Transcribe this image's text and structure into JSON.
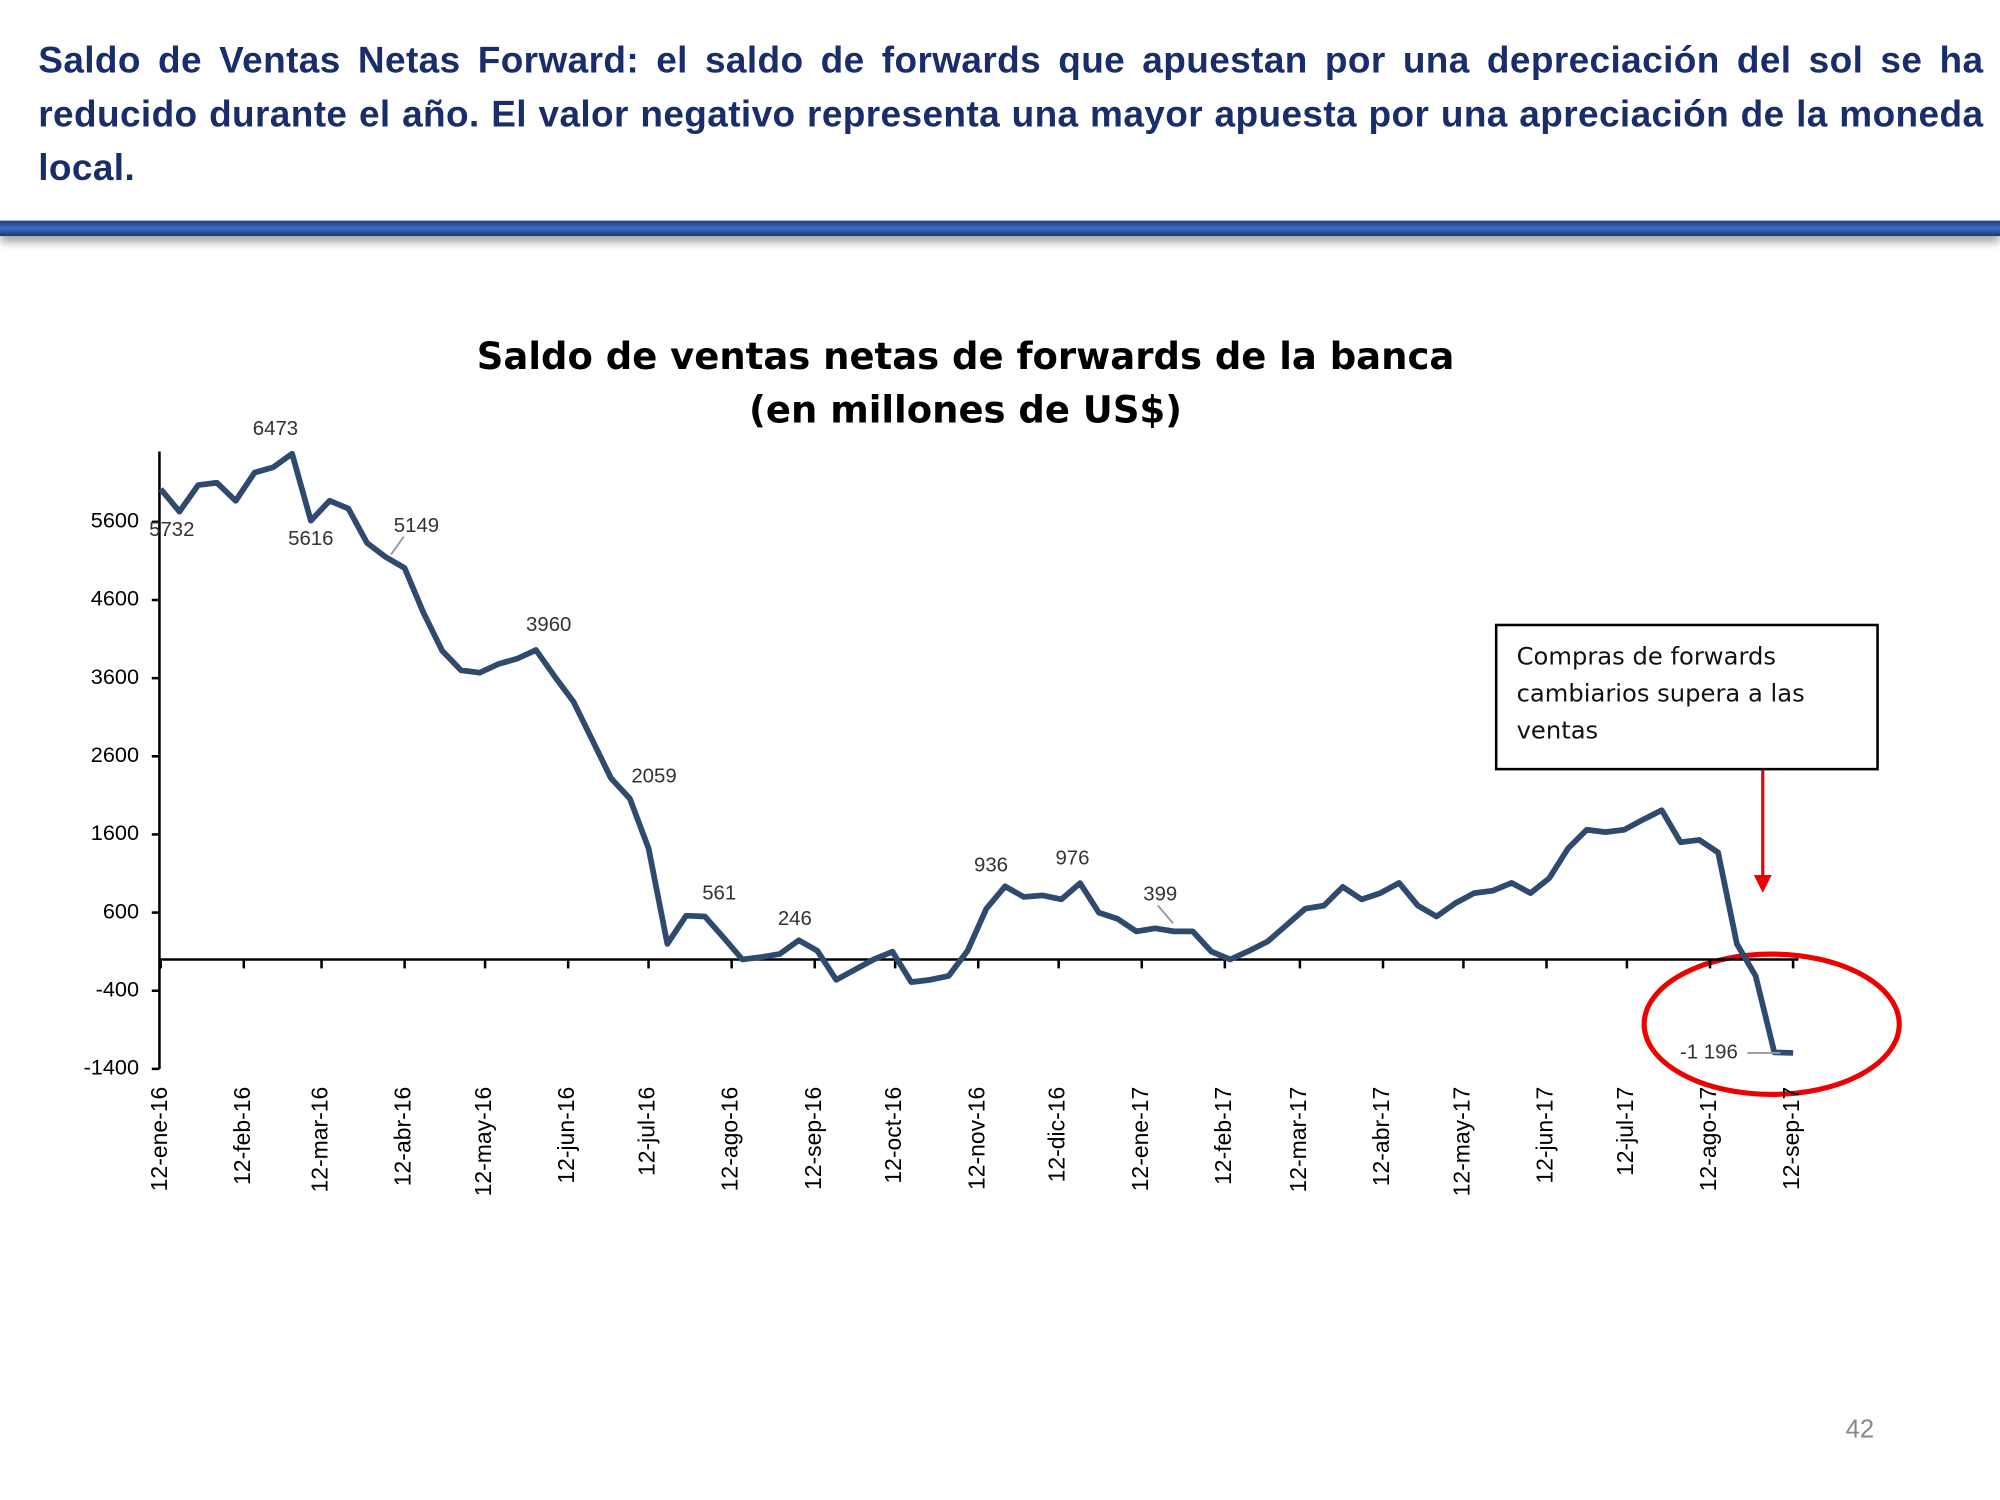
{
  "slide": {
    "heading": "Saldo de Ventas Netas Forward: el saldo de forwards que apuestan por una depreciación del sol se ha reducido durante el año. El valor negativo representa una mayor apuesta por una apreciación de la moneda local.",
    "page_number": "42"
  },
  "chart_data": {
    "type": "line",
    "title": "Saldo de ventas netas de forwards de la banca",
    "subtitle": "(en millones de US$)",
    "annotation": "Compras de forwards cambiarios supera a las ventas",
    "xlim": [
      "2016-01-12",
      "2017-09-14"
    ],
    "xticks": [
      {
        "value": "2016-01-12",
        "label": "12-ene-16"
      },
      {
        "value": "2016-02-12",
        "label": "12-feb-16"
      },
      {
        "value": "2016-03-12",
        "label": "12-mar-16"
      },
      {
        "value": "2016-04-12",
        "label": "12-abr-16"
      },
      {
        "value": "2016-05-12",
        "label": "12-may-16"
      },
      {
        "value": "2016-06-12",
        "label": "12-jun-16"
      },
      {
        "value": "2016-07-12",
        "label": "12-jul-16"
      },
      {
        "value": "2016-08-12",
        "label": "12-ago-16"
      },
      {
        "value": "2016-09-12",
        "label": "12-sep-16"
      },
      {
        "value": "2016-10-12",
        "label": "12-oct-16"
      },
      {
        "value": "2016-11-12",
        "label": "12-nov-16"
      },
      {
        "value": "2016-12-12",
        "label": "12-dic-16"
      },
      {
        "value": "2017-01-12",
        "label": "12-ene-17"
      },
      {
        "value": "2017-02-12",
        "label": "12-feb-17"
      },
      {
        "value": "2017-03-12",
        "label": "12-mar-17"
      },
      {
        "value": "2017-04-12",
        "label": "12-abr-17"
      },
      {
        "value": "2017-05-12",
        "label": "12-may-17"
      },
      {
        "value": "2017-06-12",
        "label": "12-jun-17"
      },
      {
        "value": "2017-07-12",
        "label": "12-jul-17"
      },
      {
        "value": "2017-08-12",
        "label": "12-ago-17"
      },
      {
        "value": "2017-09-12",
        "label": "12-sep-17"
      }
    ],
    "ylim": [
      -1400,
      6500
    ],
    "yticks": [
      -1400,
      -400,
      600,
      1600,
      2600,
      3600,
      4600,
      5600
    ],
    "x": [
      "2016-01-12",
      "2016-01-19",
      "2016-01-26",
      "2016-02-02",
      "2016-02-09",
      "2016-02-16",
      "2016-02-23",
      "2016-03-01",
      "2016-03-08",
      "2016-03-15",
      "2016-03-22",
      "2016-03-29",
      "2016-04-05",
      "2016-04-12",
      "2016-04-19",
      "2016-04-26",
      "2016-05-03",
      "2016-05-10",
      "2016-05-17",
      "2016-05-24",
      "2016-05-31",
      "2016-06-07",
      "2016-06-14",
      "2016-06-21",
      "2016-06-28",
      "2016-07-05",
      "2016-07-12",
      "2016-07-19",
      "2016-07-26",
      "2016-08-02",
      "2016-08-09",
      "2016-08-16",
      "2016-08-23",
      "2016-08-30",
      "2016-09-06",
      "2016-09-13",
      "2016-09-20",
      "2016-09-27",
      "2016-10-04",
      "2016-10-11",
      "2016-10-18",
      "2016-10-25",
      "2016-11-01",
      "2016-11-08",
      "2016-11-15",
      "2016-11-22",
      "2016-11-29",
      "2016-12-06",
      "2016-12-13",
      "2016-12-20",
      "2016-12-27",
      "2017-01-03",
      "2017-01-10",
      "2017-01-17",
      "2017-01-24",
      "2017-01-31",
      "2017-02-07",
      "2017-02-14",
      "2017-02-21",
      "2017-02-28",
      "2017-03-07",
      "2017-03-14",
      "2017-03-21",
      "2017-03-28",
      "2017-04-04",
      "2017-04-11",
      "2017-04-18",
      "2017-04-25",
      "2017-05-02",
      "2017-05-09",
      "2017-05-16",
      "2017-05-23",
      "2017-05-30",
      "2017-06-06",
      "2017-06-13",
      "2017-06-20",
      "2017-06-27",
      "2017-07-04",
      "2017-07-11",
      "2017-07-18",
      "2017-07-25",
      "2017-08-01",
      "2017-08-08",
      "2017-08-15",
      "2017-08-22",
      "2017-08-29",
      "2017-09-05",
      "2017-09-12"
    ],
    "series": [
      {
        "name": "Saldo de ventas netas",
        "color": "#2e4a6e",
        "values": [
          6020,
          5732,
          6070,
          6100,
          5870,
          6230,
          6300,
          6473,
          5616,
          5870,
          5770,
          5330,
          5149,
          5010,
          4440,
          3950,
          3700,
          3670,
          3780,
          3850,
          3960,
          3620,
          3300,
          2810,
          2320,
          2059,
          1420,
          200,
          561,
          550,
          280,
          0,
          30,
          70,
          246,
          110,
          -260,
          -130,
          0,
          100,
          -290,
          -260,
          -210,
          110,
          650,
          936,
          800,
          820,
          770,
          976,
          600,
          520,
          360,
          399,
          360,
          360,
          100,
          0,
          110,
          230,
          440,
          650,
          690,
          930,
          770,
          850,
          980,
          690,
          550,
          720,
          850,
          880,
          980,
          850,
          1040,
          1420,
          1660,
          1630,
          1660,
          1790,
          1910,
          1500,
          1530,
          1370,
          200,
          -210,
          -1190,
          -1196
        ]
      }
    ],
    "point_labels": [
      {
        "x": "2016-01-19",
        "value": 5732
      },
      {
        "x": "2016-03-01",
        "value": 6473
      },
      {
        "x": "2016-03-08",
        "value": 5616
      },
      {
        "x": "2016-04-05",
        "value": 5149
      },
      {
        "x": "2016-05-31",
        "value": 3960
      },
      {
        "x": "2016-07-05",
        "value": 2059
      },
      {
        "x": "2016-07-26",
        "value": 561
      },
      {
        "x": "2016-09-06",
        "value": 246
      },
      {
        "x": "2016-11-22",
        "value": 936
      },
      {
        "x": "2016-12-20",
        "value": 976
      },
      {
        "x": "2017-01-17",
        "value": 399
      },
      {
        "x": "2017-09-12",
        "value": -1196,
        "label": "-1 196"
      }
    ]
  }
}
